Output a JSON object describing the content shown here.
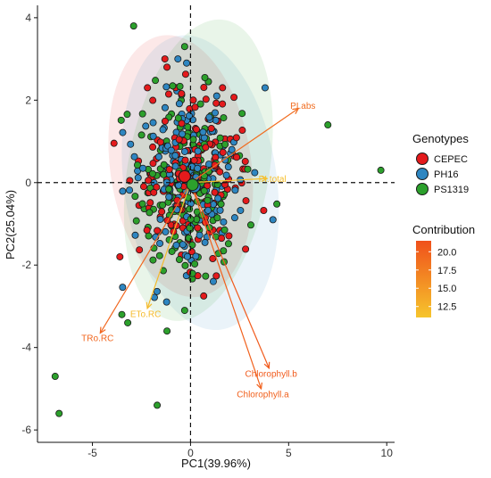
{
  "chart_data": {
    "type": "scatter",
    "subtype": "pca-biplot",
    "xlabel": "PC1(39.96%)",
    "ylabel": "PC2(25.04%)",
    "xlim": [
      -7.8,
      10.4
    ],
    "ylim": [
      -6.3,
      4.3
    ],
    "xticks": [
      -5,
      0,
      5,
      10
    ],
    "xtick_labels": [
      "-5",
      "0",
      "5",
      "10"
    ],
    "yticks": [
      -6,
      -4,
      -2,
      0,
      2,
      4
    ],
    "ytick_labels": [
      "-6",
      "-4",
      "-2",
      "0",
      "2",
      "4"
    ],
    "grid": false,
    "reference_lines": {
      "x": 0,
      "y": 0,
      "style": "dashed"
    },
    "group_legend": {
      "title": "Genotypes",
      "entries": [
        {
          "name": "CEPEC",
          "color": "#e41a1c"
        },
        {
          "name": "PH16",
          "color": "#2e86c1"
        },
        {
          "name": "PS1319",
          "color": "#2ca02c"
        }
      ]
    },
    "contribution_legend": {
      "title": "Contribution",
      "tick_labels": [
        "20.0",
        "17.5",
        "15.0",
        "12.5"
      ],
      "tick_values": [
        20.0,
        17.5,
        15.0,
        12.5
      ],
      "range": [
        11.0,
        21.5
      ],
      "color_low": "#f6c52c",
      "color_high": "#f0501b"
    },
    "group_centroids": [
      {
        "group": "CEPEC",
        "x": -0.3,
        "y": 0.15
      },
      {
        "group": "PH16",
        "x": 0.2,
        "y": -0.1
      },
      {
        "group": "PS1319",
        "x": 0.1,
        "y": -0.05
      }
    ],
    "ellipses": [
      {
        "group": "CEPEC",
        "cx": -0.5,
        "cy": 0.4,
        "rx": 3.6,
        "ry": 3.2,
        "angle": -8
      },
      {
        "group": "PH16",
        "cx": 0.5,
        "cy": 0.0,
        "rx": 3.9,
        "ry": 3.6,
        "angle": -8
      },
      {
        "group": "PS1319",
        "cx": 0.4,
        "cy": 0.3,
        "rx": 3.6,
        "ry": 3.7,
        "angle": 10
      }
    ],
    "loadings": [
      {
        "name": "PI.abs",
        "x": 5.5,
        "y": 1.8,
        "contribution": 19.0
      },
      {
        "name": "PI.total",
        "x": 3.9,
        "y": 0.1,
        "contribution": 11.5
      },
      {
        "name": "TRo.RC",
        "x": -4.6,
        "y": -3.65,
        "contribution": 19.5
      },
      {
        "name": "ETo.RC",
        "x": -2.2,
        "y": -3.05,
        "contribution": 12.0
      },
      {
        "name": "Chlorophyll.b",
        "x": 4.0,
        "y": -4.5,
        "contribution": 20.5
      },
      {
        "name": "Chlorophyll.a",
        "x": 3.6,
        "y": -5.0,
        "contribution": 20.0
      }
    ],
    "outliers": [
      {
        "group": "PS1319",
        "x": -2.9,
        "y": 3.8
      },
      {
        "group": "PS1319",
        "x": -0.3,
        "y": 3.3
      },
      {
        "group": "PS1319",
        "x": 7.0,
        "y": 1.4
      },
      {
        "group": "PS1319",
        "x": 9.7,
        "y": 0.3
      },
      {
        "group": "PS1319",
        "x": -6.9,
        "y": -4.7
      },
      {
        "group": "PS1319",
        "x": -6.7,
        "y": -5.6
      },
      {
        "group": "PS1319",
        "x": -1.7,
        "y": -5.4
      },
      {
        "group": "PH16",
        "x": 3.8,
        "y": 2.3
      },
      {
        "group": "PH16",
        "x": -0.2,
        "y": 2.9
      },
      {
        "group": "CEPEC",
        "x": -1.2,
        "y": 2.8
      },
      {
        "group": "PS1319",
        "x": -3.5,
        "y": -3.2
      },
      {
        "group": "PS1319",
        "x": -1.2,
        "y": -3.6
      },
      {
        "group": "PS1319",
        "x": -0.3,
        "y": -3.1
      },
      {
        "group": "CEPEC",
        "x": -3.6,
        "y": -1.8
      },
      {
        "group": "PH16",
        "x": 4.2,
        "y": -0.9
      },
      {
        "group": "PS1319",
        "x": -3.2,
        "y": -3.4
      }
    ],
    "cluster_points_per_group": 170,
    "cluster_spread": {
      "x": 1.3,
      "y": 1.05
    }
  }
}
